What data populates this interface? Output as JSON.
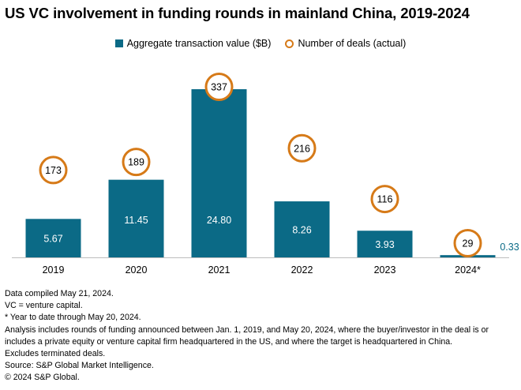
{
  "title": "US VC involvement in funding rounds in mainland China, 2019-2024",
  "legend": {
    "bars": "Aggregate transaction value ($B)",
    "circles": "Number of deals (actual)"
  },
  "colors": {
    "bar": "#0b6a86",
    "circle": "#d67a18",
    "outside_label": "#0b6a86"
  },
  "chart_data": {
    "type": "bar",
    "title": "US VC involvement in funding rounds in mainland China, 2019-2024",
    "categories": [
      "2019",
      "2020",
      "2021",
      "2022",
      "2023",
      "2024*"
    ],
    "series": [
      {
        "name": "Aggregate transaction value ($B)",
        "type": "bar",
        "values": [
          5.67,
          11.45,
          24.8,
          8.26,
          3.93,
          0.33
        ],
        "labels": [
          "5.67",
          "11.45",
          "24.80",
          "8.26",
          "3.93",
          "0.33"
        ]
      },
      {
        "name": "Number of deals (actual)",
        "type": "circle-marker",
        "values": [
          173,
          189,
          337,
          216,
          116,
          29
        ],
        "labels": [
          "173",
          "189",
          "337",
          "216",
          "116",
          "29"
        ]
      }
    ],
    "xlabel": "",
    "ylabel": "",
    "ylim": [
      0,
      24.8
    ],
    "grid": false,
    "legend_position": "top-center"
  },
  "notes": {
    "compiled": "Data compiled May 21, 2024.",
    "vc": "VC = venture capital.",
    "ytd": "* Year to date through May 20, 2024.",
    "analysis": "Analysis includes rounds of funding announced between Jan. 1, 2019, and May 20, 2024, where the buyer/investor in the deal is or includes a private equity or venture capital firm headquartered in the US, and where the target is headquartered in China.",
    "excludes": "Excludes terminated deals.",
    "source": "Source: S&P Global Market Intelligence.",
    "copyright": "© 2024 S&P Global."
  }
}
